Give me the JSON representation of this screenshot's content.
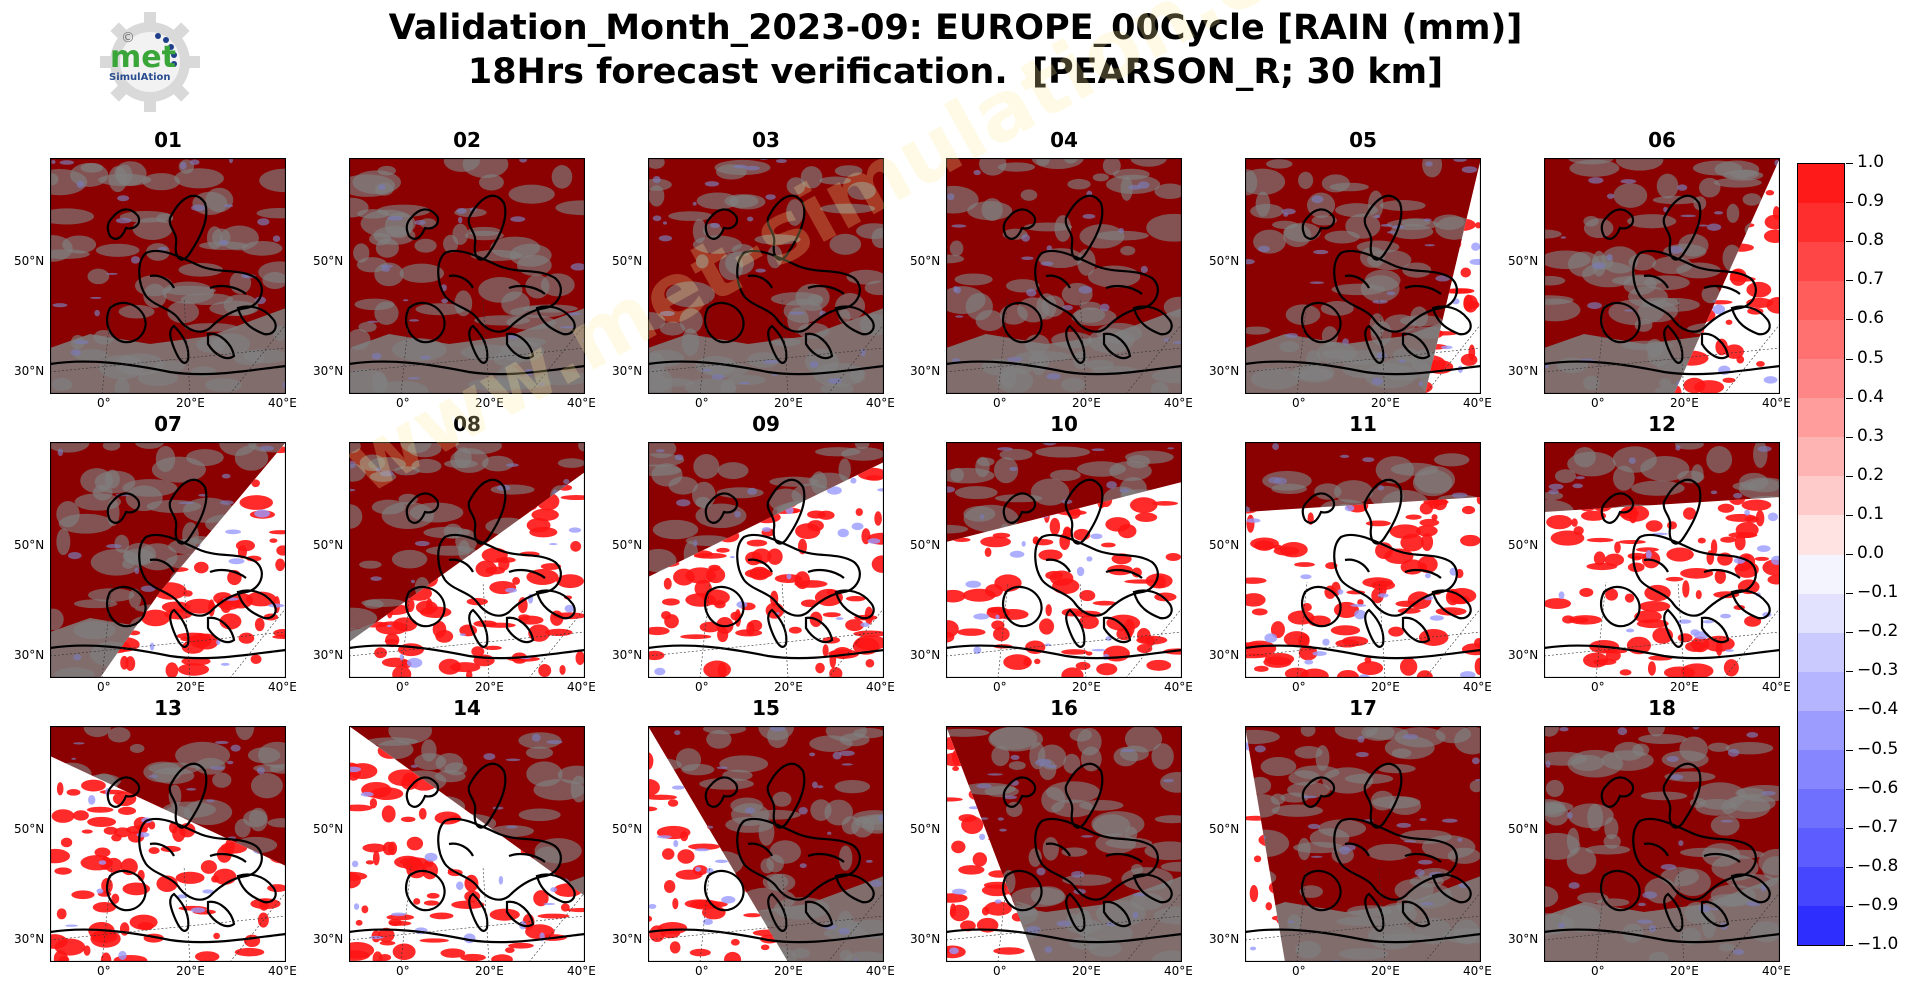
{
  "title": {
    "line1": "Validation_Month_2023-09: EUROPE_00Cycle [RAIN (mm)]",
    "line2": "18Hrs forecast verification.  [PEARSON_R; 30 km]"
  },
  "logo": {
    "text_main": "met",
    "text_sub": "SimulAtion",
    "copyright_symbol": "©",
    "gear_color": "#d0d0d0",
    "main_color": "#3aa63a",
    "sub_color": "#2a4d8f"
  },
  "watermark": {
    "text": "www.met-simulation.com"
  },
  "axes": {
    "lat_labels": [
      "50°N",
      "30°N"
    ],
    "lon_labels": [
      "0°",
      "20°E",
      "40°E"
    ]
  },
  "panels": [
    {
      "label": "01",
      "tilt": 0,
      "white_sector": "none"
    },
    {
      "label": "02",
      "tilt": 0,
      "white_sector": "none"
    },
    {
      "label": "03",
      "tilt": 0,
      "white_sector": "none"
    },
    {
      "label": "04",
      "tilt": 0,
      "white_sector": "none"
    },
    {
      "label": "05",
      "tilt": 0,
      "white_sector": "se-narrow"
    },
    {
      "label": "06",
      "tilt": 0,
      "white_sector": "se-wide"
    },
    {
      "label": "07",
      "tilt": 0,
      "white_sector": "south-east"
    },
    {
      "label": "08",
      "tilt": 0,
      "white_sector": "south-wide"
    },
    {
      "label": "09",
      "tilt": 0,
      "white_sector": "south-band"
    },
    {
      "label": "10",
      "tilt": 0,
      "white_sector": "south-full"
    },
    {
      "label": "11",
      "tilt": 0,
      "white_sector": "south-full-flat"
    },
    {
      "label": "12",
      "tilt": 0,
      "white_sector": "south-full-flat"
    },
    {
      "label": "13",
      "tilt": 0,
      "white_sector": "west-upper"
    },
    {
      "label": "14",
      "tilt": 0,
      "white_sector": "west-diag"
    },
    {
      "label": "15",
      "tilt": 0,
      "white_sector": "west-mid"
    },
    {
      "label": "16",
      "tilt": 0,
      "white_sector": "west-narrow"
    },
    {
      "label": "17",
      "tilt": 0,
      "white_sector": "west-thin"
    },
    {
      "label": "18",
      "tilt": 0,
      "white_sector": "none"
    }
  ],
  "colorbar": {
    "labels": [
      "1.0",
      "0.9",
      "0.8",
      "0.7",
      "0.6",
      "0.5",
      "0.4",
      "0.3",
      "0.2",
      "0.1",
      "0.0",
      "−0.1",
      "−0.2",
      "−0.3",
      "−0.4",
      "−0.5",
      "−0.6",
      "−0.7",
      "−0.8",
      "−0.9",
      "−1.0"
    ],
    "colors": [
      "#ff1a1a",
      "#ff2e2e",
      "#ff4646",
      "#ff5c5c",
      "#ff7070",
      "#ff8686",
      "#ff9c9c",
      "#ffb4b4",
      "#ffcaca",
      "#ffe2e2",
      "#f4f4ff",
      "#e2e2ff",
      "#cacaff",
      "#b4b4ff",
      "#9c9cff",
      "#8686ff",
      "#7070ff",
      "#5c5cff",
      "#4646ff",
      "#2e2eff"
    ]
  },
  "colors": {
    "high_corr": "#8b0000",
    "bright_red": "#ff1414",
    "neg_corr": "#7a7ab4",
    "no_data": "#808080",
    "coast": "#000000"
  }
}
